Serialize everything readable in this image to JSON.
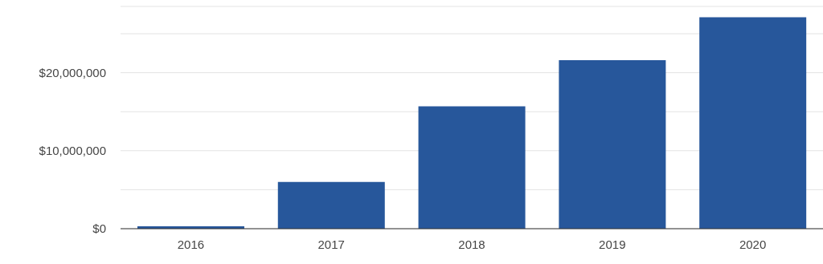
{
  "chart_data": {
    "type": "bar",
    "categories": [
      "2016",
      "2017",
      "2018",
      "2019",
      "2020"
    ],
    "values": [
      300000,
      6000000,
      15700000,
      21600000,
      27100000
    ],
    "color": "#27579b",
    "ylim": [
      0,
      28500000
    ],
    "yticks": [
      {
        "value": 0,
        "label": "$0"
      },
      {
        "value": 5000000,
        "label": null
      },
      {
        "value": 10000000,
        "label": "$10,000,000"
      },
      {
        "value": 15000000,
        "label": null
      },
      {
        "value": 20000000,
        "label": "$20,000,000"
      },
      {
        "value": 25000000,
        "label": null
      }
    ],
    "grid": "y",
    "legend": false
  }
}
